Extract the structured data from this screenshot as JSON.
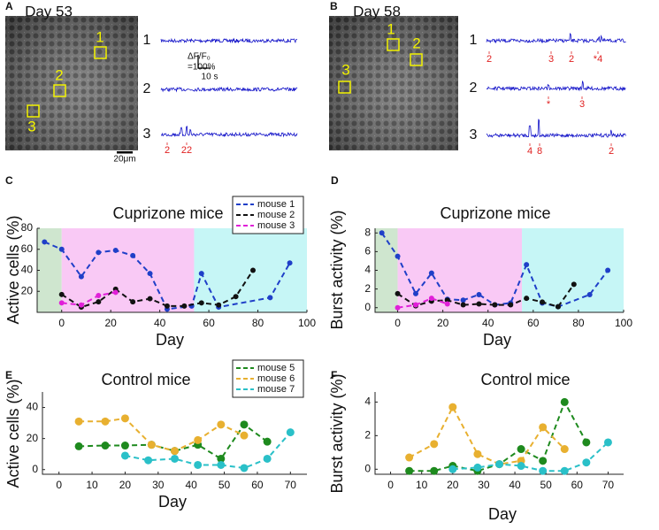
{
  "panels": [
    {
      "label": "A",
      "title": "Day 53",
      "roi_labels": [
        "1",
        "2",
        "3"
      ],
      "trace_labels": [
        "1",
        "2",
        "3"
      ],
      "scale_bar": "20μm",
      "scale_y": "ΔF/F₀",
      "scale_y_value": "=100%",
      "scale_x": "10 s",
      "events": [
        [],
        [],
        [
          "2",
          "22"
        ]
      ]
    },
    {
      "label": "B",
      "title": "Day 58",
      "roi_labels": [
        "1",
        "2",
        "3"
      ],
      "trace_labels": [
        "1",
        "2",
        "3"
      ],
      "events": [
        [
          "2",
          "3",
          "2",
          "*4"
        ],
        [
          "*",
          "3"
        ],
        [
          "4",
          "8",
          "2"
        ]
      ]
    }
  ],
  "chart_data": [
    {
      "type": "line",
      "label": "C",
      "title": "Cuprizone mice",
      "xlabel": "Day",
      "ylabel": "Active cells (%)",
      "xlim": [
        -10,
        100
      ],
      "xticks": [
        0,
        20,
        40,
        60,
        80,
        100
      ],
      "ylim": [
        0,
        80
      ],
      "yticks": [
        20,
        40,
        60,
        80
      ],
      "legend": "upper right",
      "regions": [
        {
          "start": -10,
          "end": 0,
          "color": "#cfe6cf"
        },
        {
          "start": 0,
          "end": 54,
          "color": "#f9c9f5"
        },
        {
          "start": 54,
          "end": 100,
          "color": "#c6f6f6"
        }
      ],
      "series": [
        {
          "name": "mouse 1",
          "color": "#1f3fc8",
          "x": [
            -7,
            0,
            8,
            15,
            22,
            29,
            36,
            43,
            53,
            57,
            64,
            85,
            93
          ],
          "values": [
            67,
            60,
            34,
            57,
            59,
            54,
            37,
            3,
            6,
            37,
            5,
            14,
            47
          ]
        },
        {
          "name": "mouse 2",
          "color": "#111111",
          "x": [
            0,
            8,
            15,
            22,
            29,
            36,
            43,
            50,
            57,
            64,
            71,
            78
          ],
          "values": [
            17,
            5,
            10,
            22,
            10,
            13,
            6,
            6,
            9,
            7,
            15,
            40
          ]
        },
        {
          "name": "mouse 3",
          "color": "#e020d8",
          "x": [
            0,
            8,
            15,
            22
          ],
          "values": [
            9,
            7,
            16,
            19
          ]
        }
      ]
    },
    {
      "type": "line",
      "label": "D",
      "title": "Cuprizone mice",
      "xlabel": "Day",
      "ylabel": "Burst activity (%)",
      "xlim": [
        -10,
        100
      ],
      "xticks": [
        0,
        20,
        40,
        60,
        80,
        100
      ],
      "ylim": [
        -0.5,
        8.5
      ],
      "yticks": [
        0,
        2,
        4,
        6,
        8
      ],
      "regions": [
        {
          "start": -10,
          "end": 0,
          "color": "#cfe6cf"
        },
        {
          "start": 0,
          "end": 55,
          "color": "#f9c9f5"
        },
        {
          "start": 55,
          "end": 100,
          "color": "#c6f6f6"
        }
      ],
      "series": [
        {
          "color": "#1f3fc8",
          "x": [
            -7,
            0,
            8,
            15,
            22,
            29,
            36,
            43,
            50,
            57,
            64,
            71,
            85,
            93
          ],
          "values": [
            8,
            5.5,
            1.5,
            3.7,
            0.9,
            0.8,
            1.4,
            0.3,
            0.5,
            4.6,
            0.5,
            0.1,
            1.4,
            4
          ]
        },
        {
          "color": "#111111",
          "x": [
            0,
            8,
            15,
            22,
            29,
            36,
            43,
            50,
            57,
            64,
            71,
            78
          ],
          "values": [
            1.5,
            0.2,
            0.7,
            0.8,
            0.3,
            0.4,
            0.3,
            0.3,
            1,
            0.6,
            0.1,
            2.5
          ]
        },
        {
          "color": "#e020d8",
          "x": [
            0,
            8,
            15,
            22
          ],
          "values": [
            0,
            0.3,
            1,
            0.4
          ]
        }
      ]
    },
    {
      "type": "line",
      "label": "E",
      "title": "Control mice",
      "xlabel": "Day",
      "ylabel": "Active cells (%)",
      "xlim": [
        -5,
        75
      ],
      "xticks": [
        0,
        10,
        20,
        30,
        40,
        50,
        60,
        70
      ],
      "ylim": [
        -3,
        50
      ],
      "yticks": [
        0,
        20,
        40
      ],
      "legend": "upper right",
      "series": [
        {
          "name": "mouse 5",
          "color": "#1e8a1e",
          "x": [
            6,
            14,
            20,
            28,
            35,
            42,
            49,
            56,
            63
          ],
          "values": [
            15,
            15.5,
            15.5,
            16,
            12,
            16,
            7,
            29,
            18
          ]
        },
        {
          "name": "mouse 6",
          "color": "#e8b030",
          "x": [
            6,
            14,
            20,
            28,
            35,
            42,
            49,
            56
          ],
          "values": [
            31,
            31,
            33,
            16,
            12,
            19,
            29,
            22
          ]
        },
        {
          "name": "mouse 7",
          "color": "#2ac0c8",
          "x": [
            20,
            27,
            35,
            42,
            49,
            56,
            63,
            70
          ],
          "values": [
            9,
            6,
            7,
            3,
            3,
            1,
            7,
            24
          ]
        }
      ]
    },
    {
      "type": "line",
      "label": "F",
      "title": "Control mice",
      "xlabel": "Day",
      "ylabel": "Burst activity (%)",
      "xlim": [
        -5,
        75
      ],
      "xticks": [
        0,
        10,
        20,
        30,
        40,
        50,
        60,
        70
      ],
      "ylim": [
        -0.3,
        4.6
      ],
      "yticks": [
        0,
        2,
        4
      ],
      "series": [
        {
          "color": "#1e8a1e",
          "x": [
            6,
            14,
            20,
            28,
            35,
            42,
            49,
            56,
            63
          ],
          "values": [
            -0.1,
            -0.1,
            0.2,
            -0.1,
            0.3,
            1.2,
            0.5,
            4,
            1.6
          ]
        },
        {
          "color": "#e8b030",
          "x": [
            6,
            14,
            20,
            28,
            35,
            42,
            49,
            56
          ],
          "values": [
            0.7,
            1.5,
            3.7,
            0.9,
            0.3,
            0.5,
            2.5,
            1.2
          ]
        },
        {
          "color": "#2ac0c8",
          "x": [
            20,
            28,
            35,
            42,
            49,
            56,
            63,
            70
          ],
          "values": [
            0,
            0.1,
            0.3,
            0.2,
            -0.1,
            -0.1,
            0.4,
            1.6
          ]
        }
      ]
    }
  ]
}
